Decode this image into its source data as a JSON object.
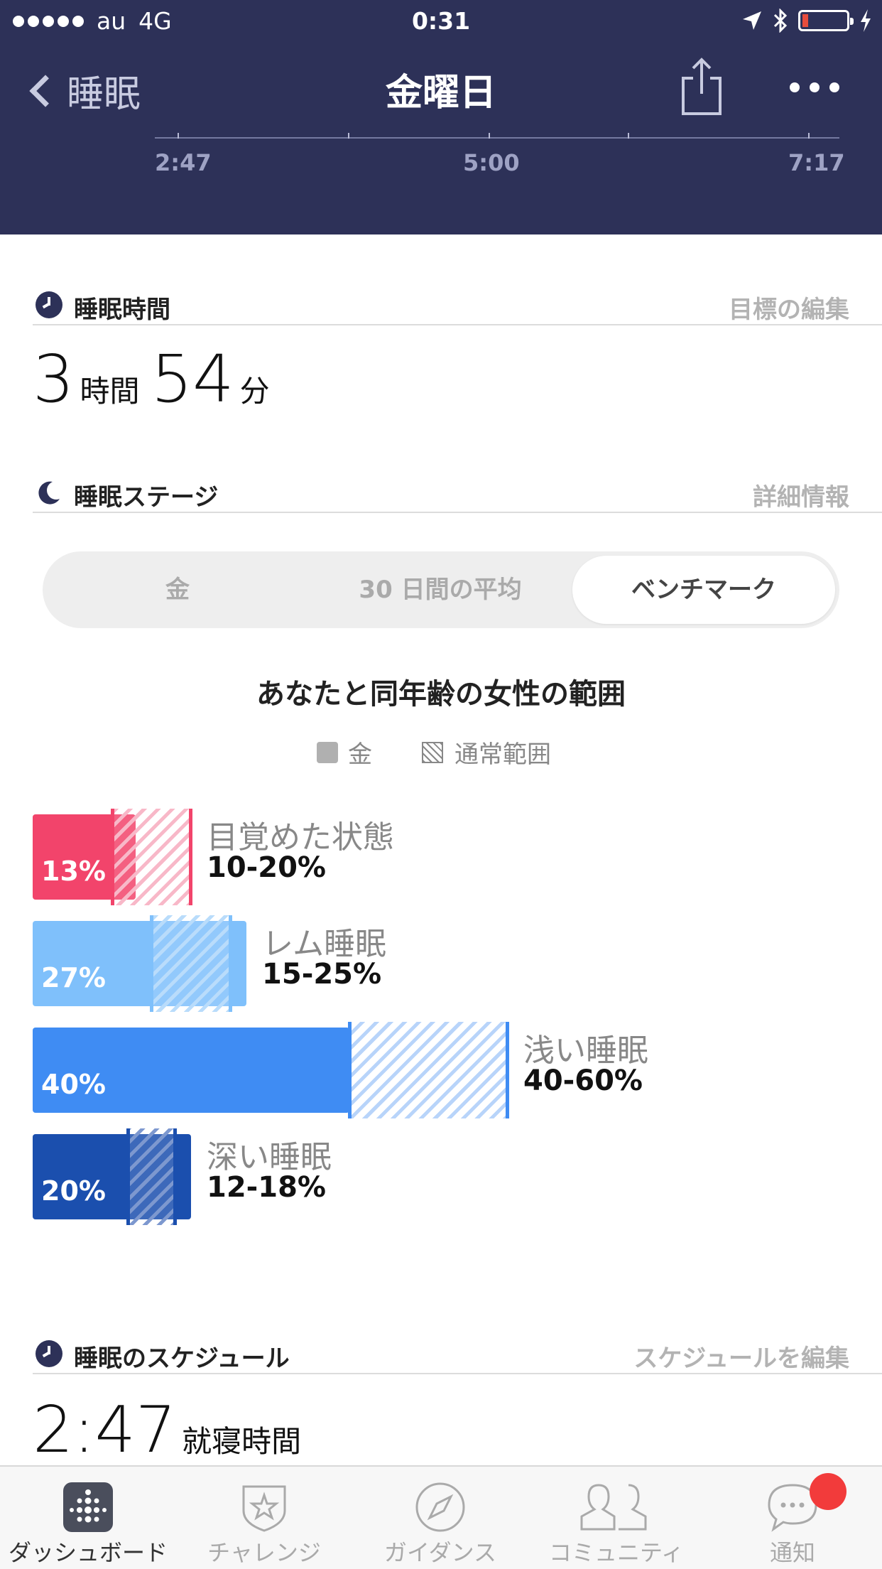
{
  "status_bar": {
    "carrier": "au",
    "network": "4G",
    "time": "0:31"
  },
  "nav": {
    "back_label": "睡眠",
    "title": "金曜日"
  },
  "timeline": {
    "labels": [
      "2:47",
      "5:00",
      "7:17"
    ]
  },
  "sleep_time": {
    "section_label": "睡眠時間",
    "edit_link": "目標の編集",
    "hours": "3",
    "hours_unit": "時間",
    "minutes": "54",
    "minutes_unit": "分"
  },
  "stages": {
    "section_label": "睡眠ステージ",
    "detail_link": "詳細情報",
    "tabs": [
      {
        "label": "金",
        "active": false
      },
      {
        "label": "30 日間の平均",
        "active": false
      },
      {
        "label": "ベンチマーク",
        "active": true
      }
    ],
    "benchmark_title": "あなたと同年齢の女性の範囲",
    "legend": {
      "actual": "金",
      "typical": "通常範囲"
    },
    "items": [
      {
        "name": "目覚めた状態",
        "percent": 13,
        "percent_label": "13%",
        "range": [
          10,
          20
        ],
        "range_label": "10-20%",
        "color": "#f2446b",
        "light": "#f8b8c8"
      },
      {
        "name": "レム睡眠",
        "percent": 27,
        "percent_label": "27%",
        "range": [
          15,
          25
        ],
        "range_label": "15-25%",
        "color": "#7fc0fb",
        "light": "#b9dcfb"
      },
      {
        "name": "浅い睡眠",
        "percent": 40,
        "percent_label": "40%",
        "range": [
          40,
          60
        ],
        "range_label": "40-60%",
        "color": "#3f8cf3",
        "light": "#b8d4fa"
      },
      {
        "name": "深い睡眠",
        "percent": 20,
        "percent_label": "20%",
        "range": [
          12,
          18
        ],
        "range_label": "12-18%",
        "color": "#1b4fae",
        "light": "#7d98cf"
      }
    ]
  },
  "schedule": {
    "section_label": "睡眠のスケジュール",
    "edit_link": "スケジュールを編集",
    "bedtime": "2:47",
    "bedtime_label": "就寝時間"
  },
  "tabbar": {
    "items": [
      {
        "label": "ダッシュボード",
        "icon": "dashboard-icon",
        "active": true
      },
      {
        "label": "チャレンジ",
        "icon": "challenge-star-icon",
        "active": false
      },
      {
        "label": "ガイダンス",
        "icon": "compass-icon",
        "active": false
      },
      {
        "label": "コミュニティ",
        "icon": "community-icon",
        "active": false
      },
      {
        "label": "通知",
        "icon": "notification-bubble-icon",
        "active": false
      }
    ]
  },
  "colors": {
    "header_bg": "#2d3158",
    "badge": "#f23b3b"
  }
}
